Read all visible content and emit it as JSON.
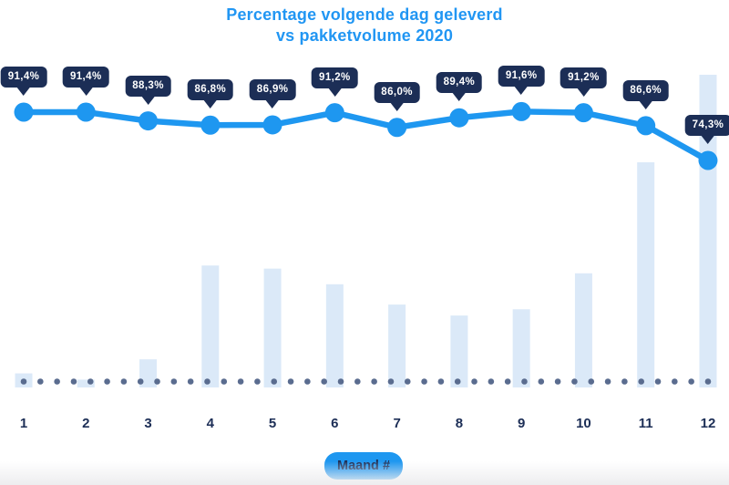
{
  "chart_data": {
    "type": "combo",
    "title_lines": [
      "Percentage volgende dag geleverd",
      "vs pakketvolume 2020"
    ],
    "title": "Percentage volgende dag geleverd vs pakketvolume 2020",
    "xlabel": "Maand #",
    "categories": [
      "1",
      "2",
      "3",
      "4",
      "5",
      "6",
      "7",
      "8",
      "9",
      "10",
      "11",
      "12"
    ],
    "series": [
      {
        "name": "Percentage volgende dag geleverd",
        "type": "line",
        "unit": "%",
        "values": [
          91.4,
          91.4,
          88.3,
          86.8,
          86.9,
          91.2,
          86.0,
          89.4,
          91.6,
          91.2,
          86.6,
          74.3
        ],
        "labels": [
          "91,4%",
          "91,4%",
          "88,3%",
          "86,8%",
          "86,9%",
          "91,2%",
          "86,0%",
          "89,4%",
          "91,6%",
          "91,2%",
          "86,6%",
          "74,3%"
        ]
      },
      {
        "name": "Pakketvolume 2020",
        "type": "bar",
        "unit": "relative height, % of max (volume axis unlabeled)",
        "values": [
          4.5,
          2.5,
          9,
          39,
          38,
          33,
          26.5,
          23,
          25,
          36.5,
          72,
          100
        ]
      }
    ],
    "axes": {
      "y_left_visible": false,
      "y_right_visible": false,
      "grid": false,
      "baseline_style": "dotted"
    },
    "legend": "none",
    "colors": {
      "accent_blue": "#1E97F0",
      "title_blue": "#2196F3",
      "tooltip_navy": "#1C2E56",
      "tooltip_text": "#FFFFFF",
      "bar_fill": "#DBE9F8",
      "baseline_dot": "#5A6C8F"
    }
  }
}
